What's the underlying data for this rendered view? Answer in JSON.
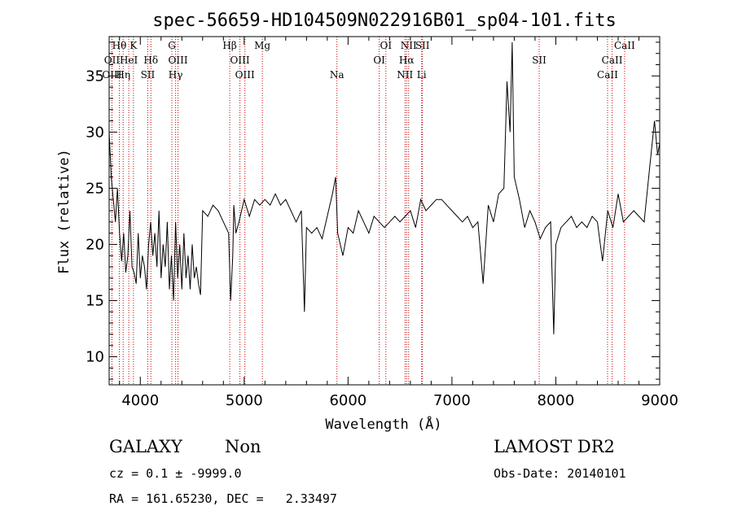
{
  "chart_data": {
    "type": "line",
    "title": "spec-56659-HD104509N022916B01_sp04-101.fits",
    "xlabel": "Wavelength (Å)",
    "ylabel": "Flux (relative)",
    "xlim": [
      3700,
      9000
    ],
    "ylim": [
      7.5,
      38.5
    ],
    "x_ticks": [
      4000,
      5000,
      6000,
      7000,
      8000,
      9000
    ],
    "y_ticks": [
      10,
      15,
      20,
      25,
      30,
      35
    ],
    "grid": false,
    "series": [
      {
        "x": [
          3700,
          3720,
          3740,
          3760,
          3780,
          3800,
          3820,
          3840,
          3860,
          3880,
          3900,
          3920,
          3940,
          3960,
          3980,
          4000,
          4020,
          4040,
          4060,
          4080,
          4100,
          4120,
          4140,
          4160,
          4180,
          4200,
          4220,
          4240,
          4260,
          4280,
          4300,
          4320,
          4340,
          4360,
          4380,
          4400,
          4420,
          4440,
          4460,
          4480,
          4500,
          4520,
          4540,
          4560,
          4580,
          4600,
          4650,
          4700,
          4750,
          4800,
          4850,
          4870,
          4890,
          4900,
          4920,
          4950,
          5000,
          5050,
          5100,
          5150,
          5200,
          5250,
          5300,
          5350,
          5400,
          5450,
          5500,
          5550,
          5580,
          5600,
          5650,
          5700,
          5750,
          5800,
          5850,
          5880,
          5900,
          5950,
          6000,
          6050,
          6100,
          6150,
          6200,
          6250,
          6300,
          6350,
          6400,
          6450,
          6500,
          6550,
          6600,
          6650,
          6700,
          6750,
          6800,
          6850,
          6900,
          6950,
          7000,
          7050,
          7100,
          7150,
          7200,
          7250,
          7300,
          7350,
          7400,
          7450,
          7500,
          7530,
          7560,
          7580,
          7600,
          7650,
          7700,
          7750,
          7800,
          7850,
          7900,
          7950,
          7980,
          8000,
          8050,
          8100,
          8150,
          8200,
          8250,
          8300,
          8350,
          8400,
          8450,
          8500,
          8550,
          8600,
          8650,
          8700,
          8750,
          8800,
          8850,
          8900,
          8950,
          8980,
          9000
        ],
        "y": [
          30,
          26,
          24,
          22,
          25,
          21,
          18.5,
          21,
          17.5,
          19,
          23,
          18,
          17.5,
          16.5,
          21,
          17,
          19,
          18,
          16,
          20,
          22,
          19,
          21,
          18,
          23,
          17,
          20,
          18,
          22,
          16,
          19,
          15,
          22,
          17,
          20,
          16,
          21,
          17,
          19,
          16,
          20,
          17,
          18,
          16.5,
          15.5,
          23,
          22.5,
          23.5,
          23,
          22,
          21,
          15,
          19,
          23.5,
          21,
          22,
          24,
          22.5,
          24,
          23.5,
          24,
          23.5,
          24.5,
          23.5,
          24,
          23,
          22,
          23,
          14,
          21.5,
          21,
          21.5,
          20.5,
          22.5,
          24.5,
          26,
          21,
          19,
          21.5,
          21,
          23,
          22,
          21,
          22.5,
          22,
          21.5,
          22,
          22.5,
          22,
          22.5,
          23,
          21.5,
          24,
          23,
          23.5,
          24,
          24,
          23.5,
          23,
          22.5,
          22,
          22.5,
          21.5,
          22,
          16.5,
          23.5,
          22,
          24.5,
          25,
          34.5,
          30,
          38,
          26,
          24,
          21.5,
          23,
          22,
          20.5,
          21.5,
          22,
          12,
          20,
          21.5,
          22,
          22.5,
          21.5,
          22,
          21.5,
          22.5,
          22,
          18.5,
          23,
          21.5,
          24.5,
          22,
          22.5,
          23,
          22.5,
          22,
          26.5,
          31,
          28,
          29
        ]
      }
    ],
    "line_markers": {
      "row1": [
        {
          "label": "Hθ",
          "x": 3798
        },
        {
          "label": "K",
          "x": 3934
        },
        {
          "label": "G",
          "x": 4304
        },
        {
          "label": "Hβ",
          "x": 4861
        },
        {
          "label": "Mg",
          "x": 5175
        },
        {
          "label": "OI",
          "x": 6364
        },
        {
          "label": "NII",
          "x": 6583
        },
        {
          "label": "SII",
          "x": 6716
        },
        {
          "label": "CaII",
          "x": 8662
        }
      ],
      "row2": [
        {
          "label": "OII",
          "x": 3727
        },
        {
          "label": "HeI",
          "x": 3889
        },
        {
          "label": "Hδ",
          "x": 4102
        },
        {
          "label": "OIII",
          "x": 4363
        },
        {
          "label": "OIII",
          "x": 4959
        },
        {
          "label": "OI",
          "x": 6300
        },
        {
          "label": "Hα",
          "x": 6563
        },
        {
          "label": "SII",
          "x": 7840
        },
        {
          "label": "CaII",
          "x": 8542
        }
      ],
      "row3": [
        {
          "label": "OIII",
          "x": 3727
        },
        {
          "label": "Hη",
          "x": 3835
        },
        {
          "label": "SII",
          "x": 4072
        },
        {
          "label": "Hγ",
          "x": 4340
        },
        {
          "label": "OIII",
          "x": 5007
        },
        {
          "label": "Na",
          "x": 5893
        },
        {
          "label": "NII",
          "x": 6548
        },
        {
          "label": "Li",
          "x": 6708
        },
        {
          "label": "CaII",
          "x": 8498
        }
      ]
    },
    "marker_color": "#cc0000"
  },
  "info": {
    "class": "GALAXY",
    "subclass": "Non",
    "survey": "LAMOST DR2",
    "cz": "cz = 0.1 ± -9999.0",
    "obs_date": "Obs-Date: 20140101",
    "radec": "RA = 161.65230, DEC =   2.33497"
  }
}
